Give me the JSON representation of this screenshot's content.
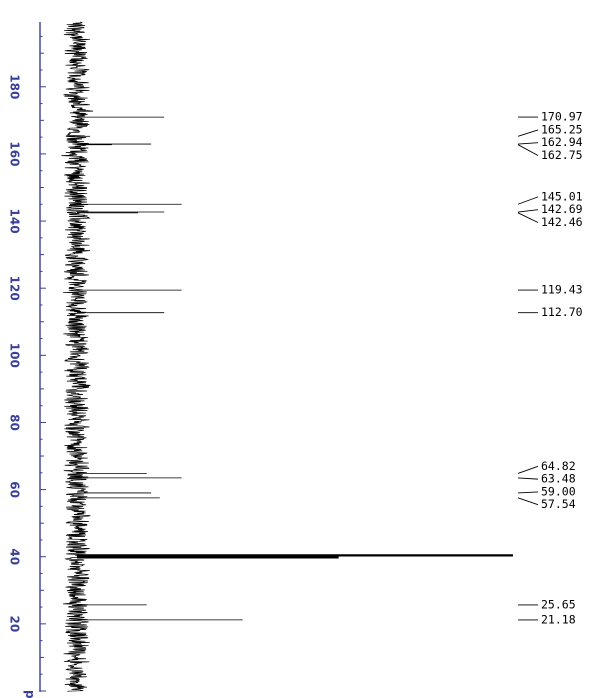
{
  "chart_data": {
    "type": "line",
    "title": "",
    "xlabel": "",
    "ylabel": "ppm",
    "orientation": "vertical-axis",
    "ylim": [
      -0.3,
      199.3
    ],
    "axis_ticks": [
      180,
      160,
      140,
      120,
      100,
      80,
      60,
      40,
      20
    ],
    "axis_tick_labels": [
      "180",
      "160",
      "140",
      "120",
      "100",
      "80",
      "60",
      "40",
      "20"
    ],
    "peaks": [
      {
        "ppm": 170.97,
        "label": "170.97",
        "intensity": 0.2
      },
      {
        "ppm": 165.25,
        "label": "165.25",
        "intensity": 0.03
      },
      {
        "ppm": 162.94,
        "label": "162.94",
        "intensity": 0.17
      },
      {
        "ppm": 162.75,
        "label": "162.75",
        "intensity": 0.08
      },
      {
        "ppm": 145.01,
        "label": "145.01",
        "intensity": 0.24
      },
      {
        "ppm": 142.69,
        "label": "142.69",
        "intensity": 0.2
      },
      {
        "ppm": 142.46,
        "label": "142.46",
        "intensity": 0.14
      },
      {
        "ppm": 119.43,
        "label": "119.43",
        "intensity": 0.24
      },
      {
        "ppm": 112.7,
        "label": "112.70",
        "intensity": 0.2
      },
      {
        "ppm": 64.82,
        "label": "64.82",
        "intensity": 0.16
      },
      {
        "ppm": 63.48,
        "label": "63.48",
        "intensity": 0.24
      },
      {
        "ppm": 59.0,
        "label": "59.00",
        "intensity": 0.17
      },
      {
        "ppm": 57.54,
        "label": "57.54",
        "intensity": 0.19
      },
      {
        "ppm": 40.4,
        "label": "",
        "intensity": 1.0
      },
      {
        "ppm": 39.8,
        "label": "",
        "intensity": 0.6
      },
      {
        "ppm": 25.65,
        "label": "25.65",
        "intensity": 0.16
      },
      {
        "ppm": 21.18,
        "label": "21.18",
        "intensity": 0.38
      }
    ],
    "colors": {
      "axis": "#3a3f98",
      "spectrum": "#000000"
    },
    "grid": false,
    "legend": "none"
  }
}
